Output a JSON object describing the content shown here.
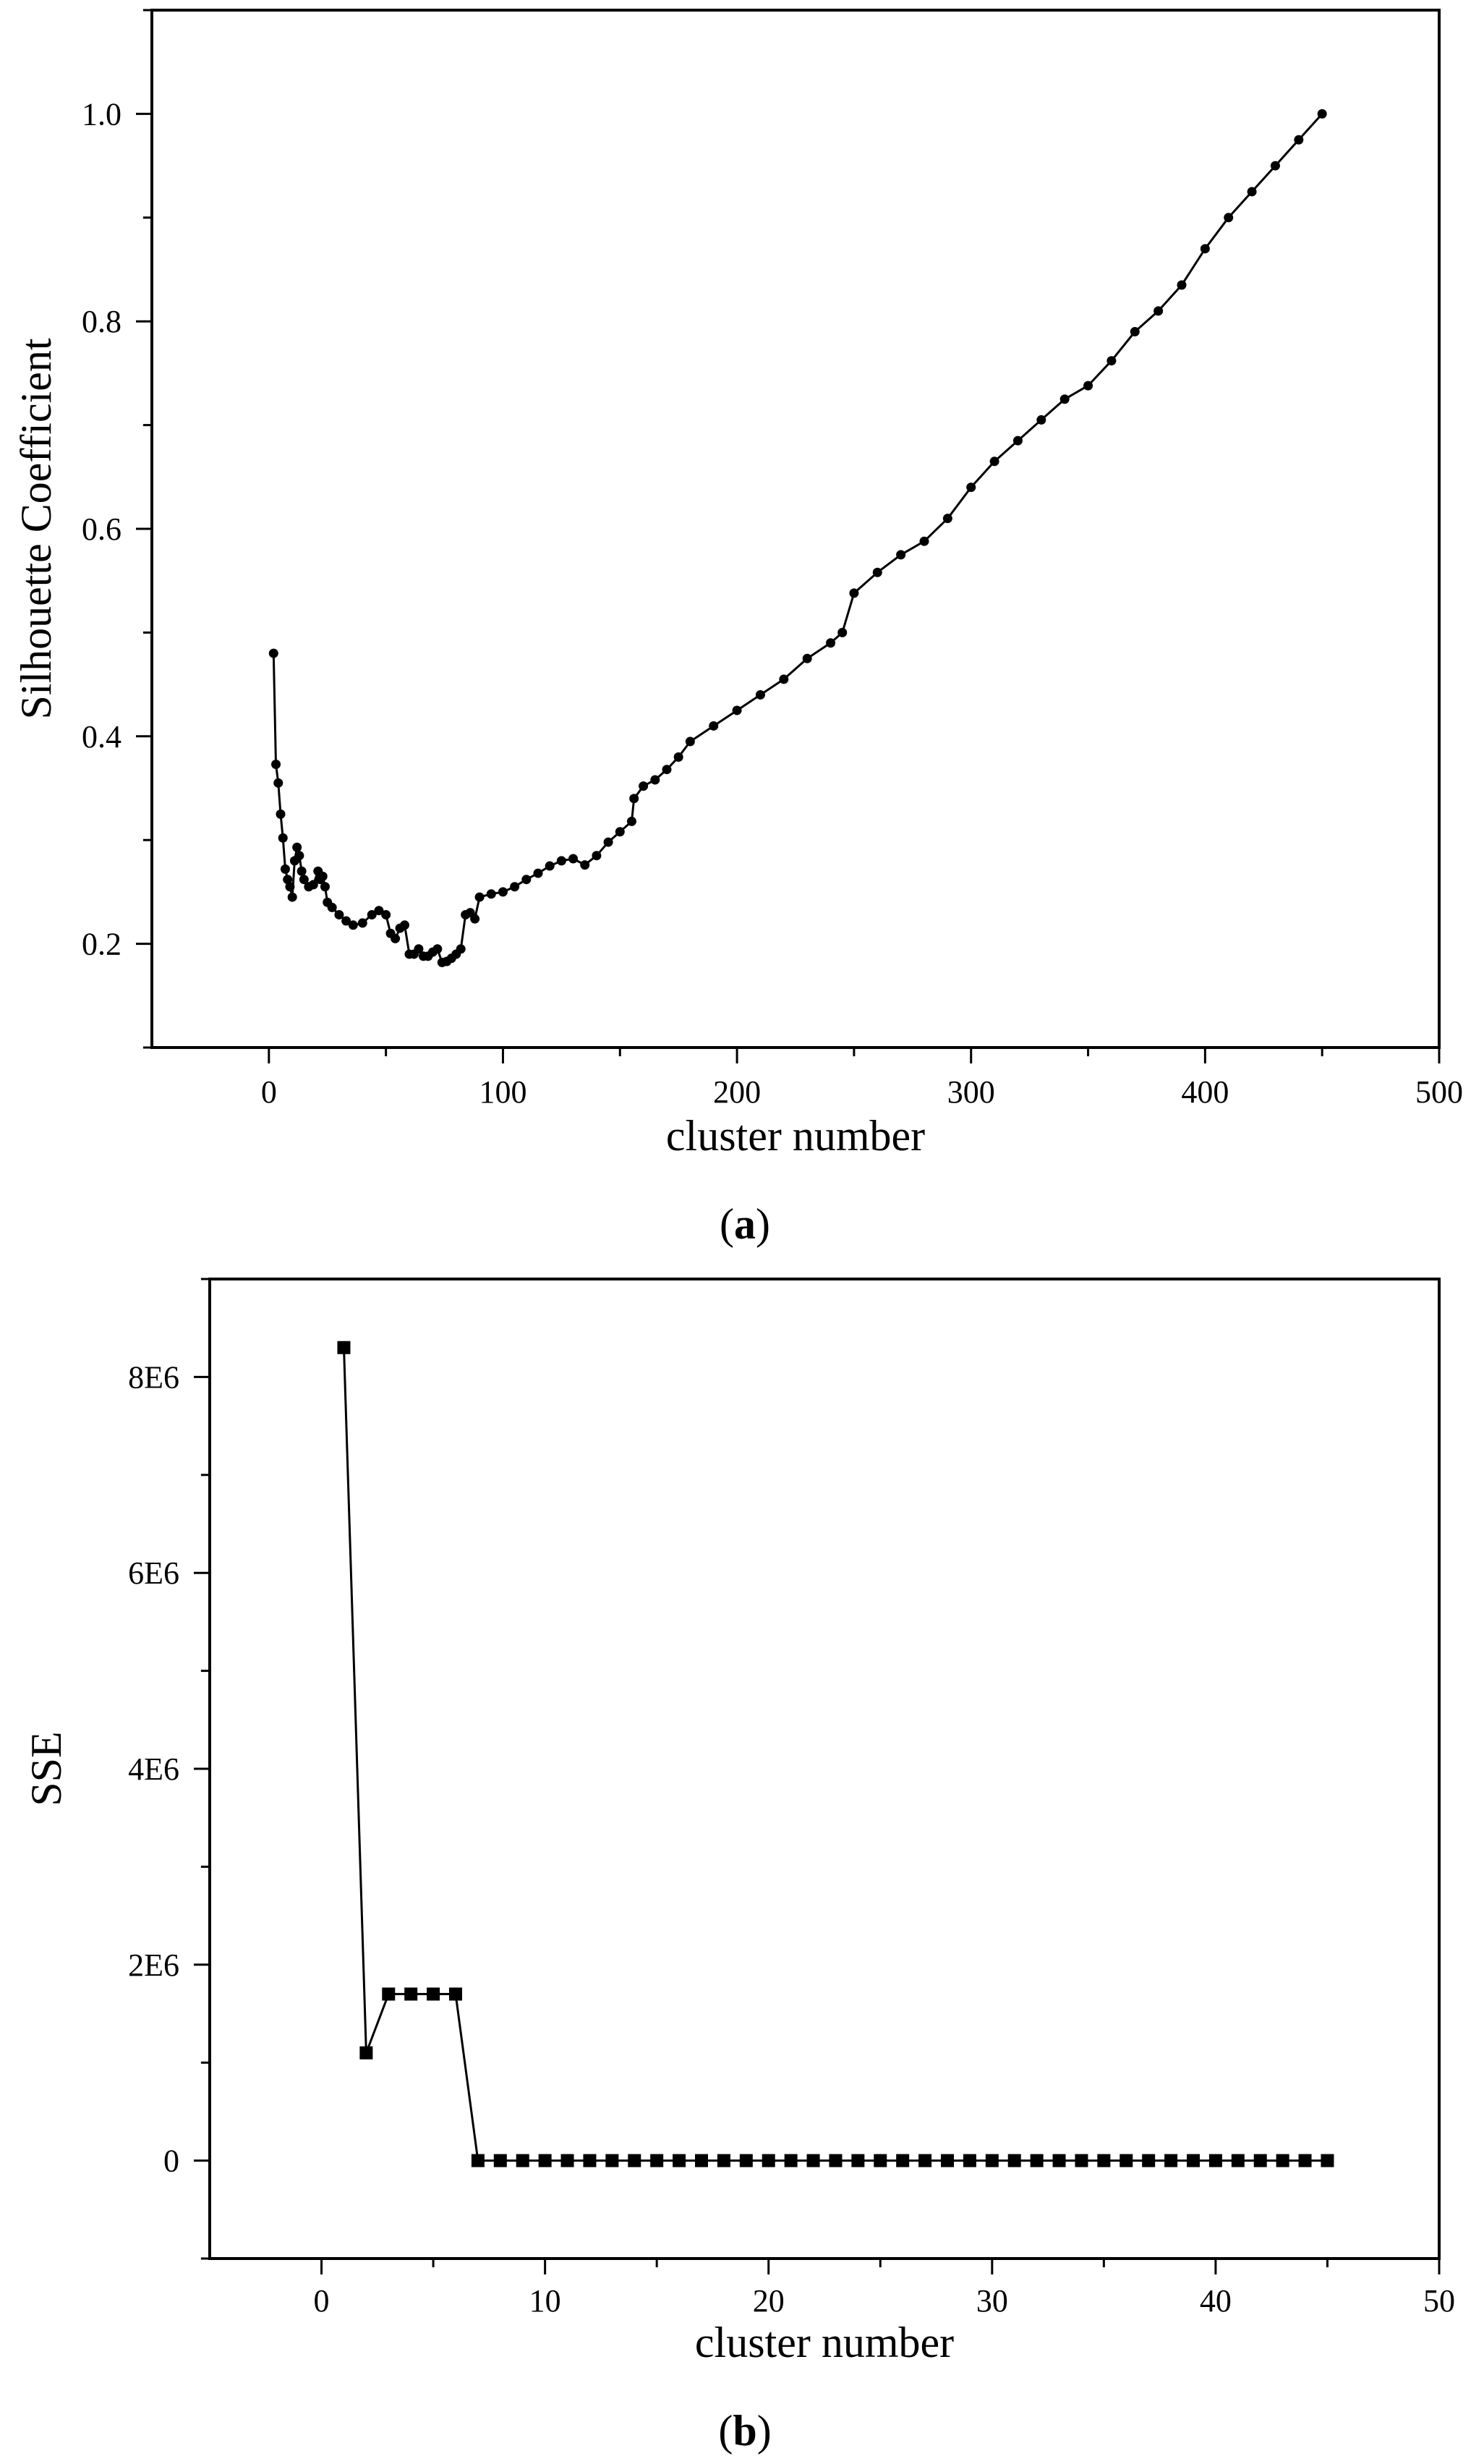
{
  "chart_data": [
    {
      "type": "line",
      "marker": "circle",
      "caption": "(a)",
      "caption_letter": "a",
      "xlabel": "cluster number",
      "ylabel": "Silhouette Coefficient",
      "xlim": [
        -50,
        500
      ],
      "ylim": [
        0.1,
        1.1
      ],
      "xticks": [
        0,
        100,
        200,
        300,
        400,
        500
      ],
      "yticks": [
        0.2,
        0.4,
        0.6,
        0.8,
        1.0
      ],
      "xtick_labels": [
        "0",
        "100",
        "200",
        "300",
        "400",
        "500"
      ],
      "ytick_labels": [
        "0.2",
        "0.4",
        "0.6",
        "0.8",
        "1.0"
      ],
      "grid": false,
      "series": [
        {
          "x": [
            2,
            3,
            4,
            5,
            6,
            7,
            8,
            9,
            10,
            11,
            12,
            13,
            14,
            15,
            17,
            19,
            21,
            22,
            23,
            24,
            25,
            27,
            30,
            33,
            36,
            40,
            44,
            47,
            50,
            52,
            54,
            56,
            58,
            60,
            62,
            64,
            66,
            68,
            70,
            72,
            74,
            76,
            78,
            80,
            82,
            84,
            86,
            88,
            90,
            95,
            100,
            105,
            110,
            115,
            120,
            125,
            130,
            135,
            140,
            145,
            150,
            155,
            156,
            160,
            165,
            170,
            175,
            180,
            190,
            200,
            210,
            220,
            230,
            240,
            245,
            250,
            260,
            270,
            280,
            290,
            300,
            310,
            320,
            330,
            340,
            350,
            360,
            370,
            380,
            390,
            400,
            410,
            420,
            430,
            440,
            450
          ],
          "y": [
            0.48,
            0.373,
            0.355,
            0.325,
            0.302,
            0.272,
            0.262,
            0.255,
            0.245,
            0.28,
            0.293,
            0.285,
            0.27,
            0.262,
            0.255,
            0.257,
            0.27,
            0.262,
            0.265,
            0.255,
            0.24,
            0.235,
            0.228,
            0.222,
            0.218,
            0.22,
            0.228,
            0.232,
            0.228,
            0.21,
            0.205,
            0.215,
            0.218,
            0.19,
            0.19,
            0.195,
            0.188,
            0.188,
            0.192,
            0.195,
            0.182,
            0.183,
            0.186,
            0.19,
            0.195,
            0.228,
            0.23,
            0.224,
            0.245,
            0.248,
            0.25,
            0.255,
            0.262,
            0.268,
            0.275,
            0.28,
            0.282,
            0.276,
            0.285,
            0.298,
            0.308,
            0.318,
            0.34,
            0.352,
            0.358,
            0.368,
            0.38,
            0.395,
            0.41,
            0.425,
            0.44,
            0.455,
            0.475,
            0.49,
            0.5,
            0.538,
            0.558,
            0.575,
            0.588,
            0.61,
            0.64,
            0.665,
            0.685,
            0.705,
            0.725,
            0.738,
            0.762,
            0.79,
            0.81,
            0.835,
            0.87,
            0.9,
            0.925,
            0.95,
            0.975,
            1.0
          ]
        }
      ]
    },
    {
      "type": "line",
      "marker": "square",
      "caption": "(b)",
      "caption_letter": "b",
      "xlabel": "cluster number",
      "ylabel": "SSE",
      "xlim": [
        -5,
        50
      ],
      "ylim": [
        -1000000,
        9000000
      ],
      "xticks": [
        0,
        10,
        20,
        30,
        40,
        50
      ],
      "yticks": [
        0,
        2000000,
        4000000,
        6000000,
        8000000
      ],
      "xtick_labels": [
        "0",
        "10",
        "20",
        "30",
        "40",
        "50"
      ],
      "ytick_labels": [
        "0",
        "2E6",
        "4E6",
        "6E6",
        "8E6"
      ],
      "grid": false,
      "series": [
        {
          "x": [
            1,
            2,
            3,
            4,
            5,
            6,
            7,
            8,
            9,
            10,
            11,
            12,
            13,
            14,
            15,
            16,
            17,
            18,
            19,
            20,
            21,
            22,
            23,
            24,
            25,
            26,
            27,
            28,
            29,
            30,
            31,
            32,
            33,
            34,
            35,
            36,
            37,
            38,
            39,
            40,
            41,
            42,
            43,
            44,
            45
          ],
          "y": [
            8300000,
            1100000,
            1700000,
            1700000,
            1700000,
            1700000,
            0,
            0,
            0,
            0,
            0,
            0,
            0,
            0,
            0,
            0,
            0,
            0,
            0,
            0,
            0,
            0,
            0,
            0,
            0,
            0,
            0,
            0,
            0,
            0,
            0,
            0,
            0,
            0,
            0,
            0,
            0,
            0,
            0,
            0,
            0,
            0,
            0,
            0,
            0
          ]
        }
      ]
    }
  ]
}
